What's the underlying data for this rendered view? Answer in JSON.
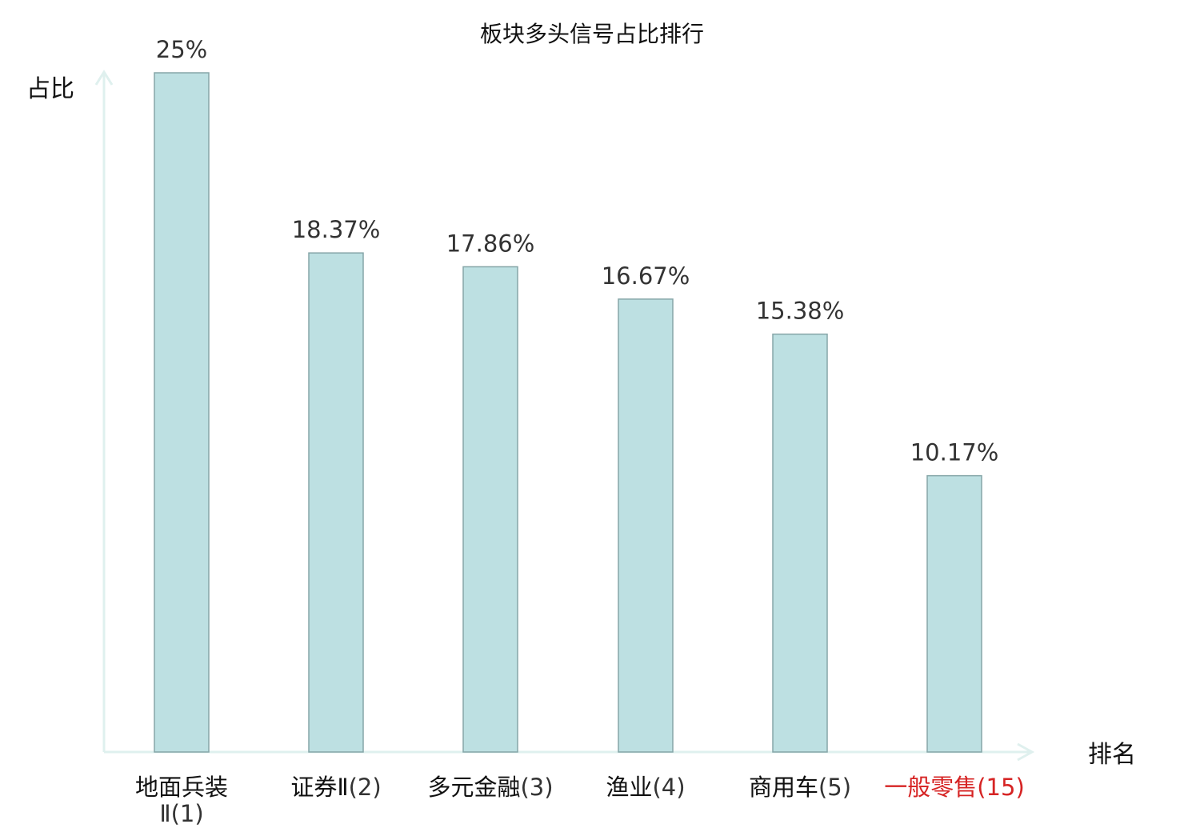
{
  "chart_data": {
    "type": "bar",
    "title": "板块多头信号占比排行",
    "xlabel": "排名",
    "ylabel": "占比",
    "categories": [
      {
        "name": "地面兵装",
        "name_line2": "Ⅱ",
        "rank": "(1)"
      },
      {
        "name": "证券Ⅱ",
        "rank": "(2)"
      },
      {
        "name": "多元金融",
        "rank": "(3)"
      },
      {
        "name": "渔业",
        "rank": "(4)"
      },
      {
        "name": "商用车",
        "rank": "(5)"
      },
      {
        "name": "一般零售",
        "rank": "(15)",
        "highlight": true
      }
    ],
    "values": [
      25,
      18.37,
      17.86,
      16.67,
      15.38,
      10.17
    ],
    "value_labels": [
      "25%",
      "18.37%",
      "17.86%",
      "16.67%",
      "15.38%",
      "10.17%"
    ],
    "ylim": [
      0,
      25
    ],
    "grid": false,
    "legend": "none",
    "colors": {
      "bar_fill": "#bde0e2",
      "bar_stroke": "#86a6a8",
      "axis": "#dff0ee",
      "highlight": "#d62424"
    }
  }
}
